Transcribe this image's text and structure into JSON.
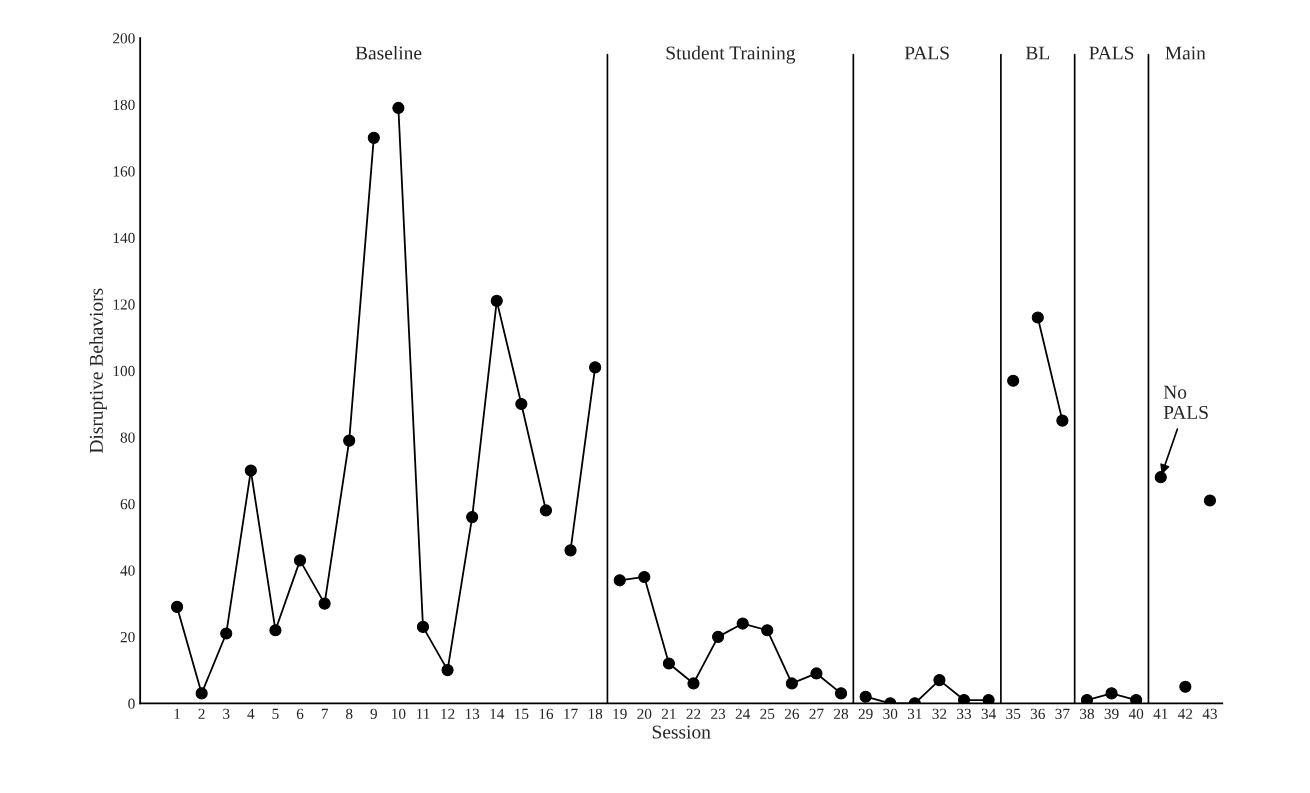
{
  "chart_data": {
    "type": "line",
    "xlabel": "Session",
    "ylabel": "Disruptive Behaviors",
    "xlim": [
      -0.5,
      43.5
    ],
    "ylim": [
      0,
      200
    ],
    "xticks": [
      1,
      2,
      3,
      4,
      5,
      6,
      7,
      8,
      9,
      10,
      11,
      12,
      13,
      14,
      15,
      16,
      17,
      18,
      19,
      20,
      21,
      22,
      23,
      24,
      25,
      26,
      27,
      28,
      29,
      30,
      31,
      32,
      33,
      34,
      35,
      36,
      37,
      38,
      39,
      40,
      41,
      42,
      43
    ],
    "yticks": [
      0,
      20,
      40,
      60,
      80,
      100,
      120,
      140,
      160,
      180,
      200
    ],
    "marker": "circle",
    "grid": false,
    "legend": false,
    "series": [
      {
        "color": "#000000",
        "x": [
          1,
          2,
          3,
          4,
          5,
          6,
          7,
          8,
          9
        ],
        "values": [
          29,
          3,
          21,
          70,
          22,
          43,
          30,
          79,
          170
        ]
      },
      {
        "color": "#000000",
        "x": [
          10,
          11,
          12,
          13,
          14,
          15,
          16
        ],
        "values": [
          179,
          23,
          10,
          56,
          121,
          90,
          58
        ]
      },
      {
        "color": "#000000",
        "x": [
          17,
          18
        ],
        "values": [
          46,
          101
        ]
      },
      {
        "color": "#000000",
        "x": [
          19,
          20,
          21,
          22,
          23,
          24,
          25,
          26,
          27,
          28
        ],
        "values": [
          37,
          38,
          12,
          6,
          20,
          24,
          22,
          6,
          9,
          3
        ]
      },
      {
        "color": "#000000",
        "x": [
          29,
          30,
          31,
          32,
          33,
          34
        ],
        "values": [
          2,
          0,
          0,
          7,
          1,
          1
        ]
      },
      {
        "color": "#000000",
        "x": [
          35
        ],
        "values": [
          97
        ]
      },
      {
        "color": "#000000",
        "x": [
          36,
          37
        ],
        "values": [
          116,
          85
        ]
      },
      {
        "color": "#000000",
        "x": [
          38,
          39,
          40
        ],
        "values": [
          1,
          3,
          1
        ]
      },
      {
        "color": "#000000",
        "x": [
          41
        ],
        "values": [
          68
        ]
      },
      {
        "color": "#000000",
        "x": [
          42
        ],
        "values": [
          5
        ]
      },
      {
        "color": "#000000",
        "x": [
          43
        ],
        "values": [
          61
        ]
      }
    ],
    "ref_lines": [
      {
        "axis": "x",
        "value": 18.5,
        "color": "#000000"
      },
      {
        "axis": "x",
        "value": 28.5,
        "color": "#000000"
      },
      {
        "axis": "x",
        "value": 34.5,
        "color": "#000000"
      },
      {
        "axis": "x",
        "value": 37.5,
        "color": "#000000"
      },
      {
        "axis": "x",
        "value": 40.5,
        "color": "#000000"
      }
    ],
    "annotations": [
      "Baseline",
      "Student Training",
      "PALS",
      "BL",
      "PALS",
      "Main",
      {
        "text": "No\nPALS",
        "x": 41,
        "y": 68
      }
    ]
  }
}
